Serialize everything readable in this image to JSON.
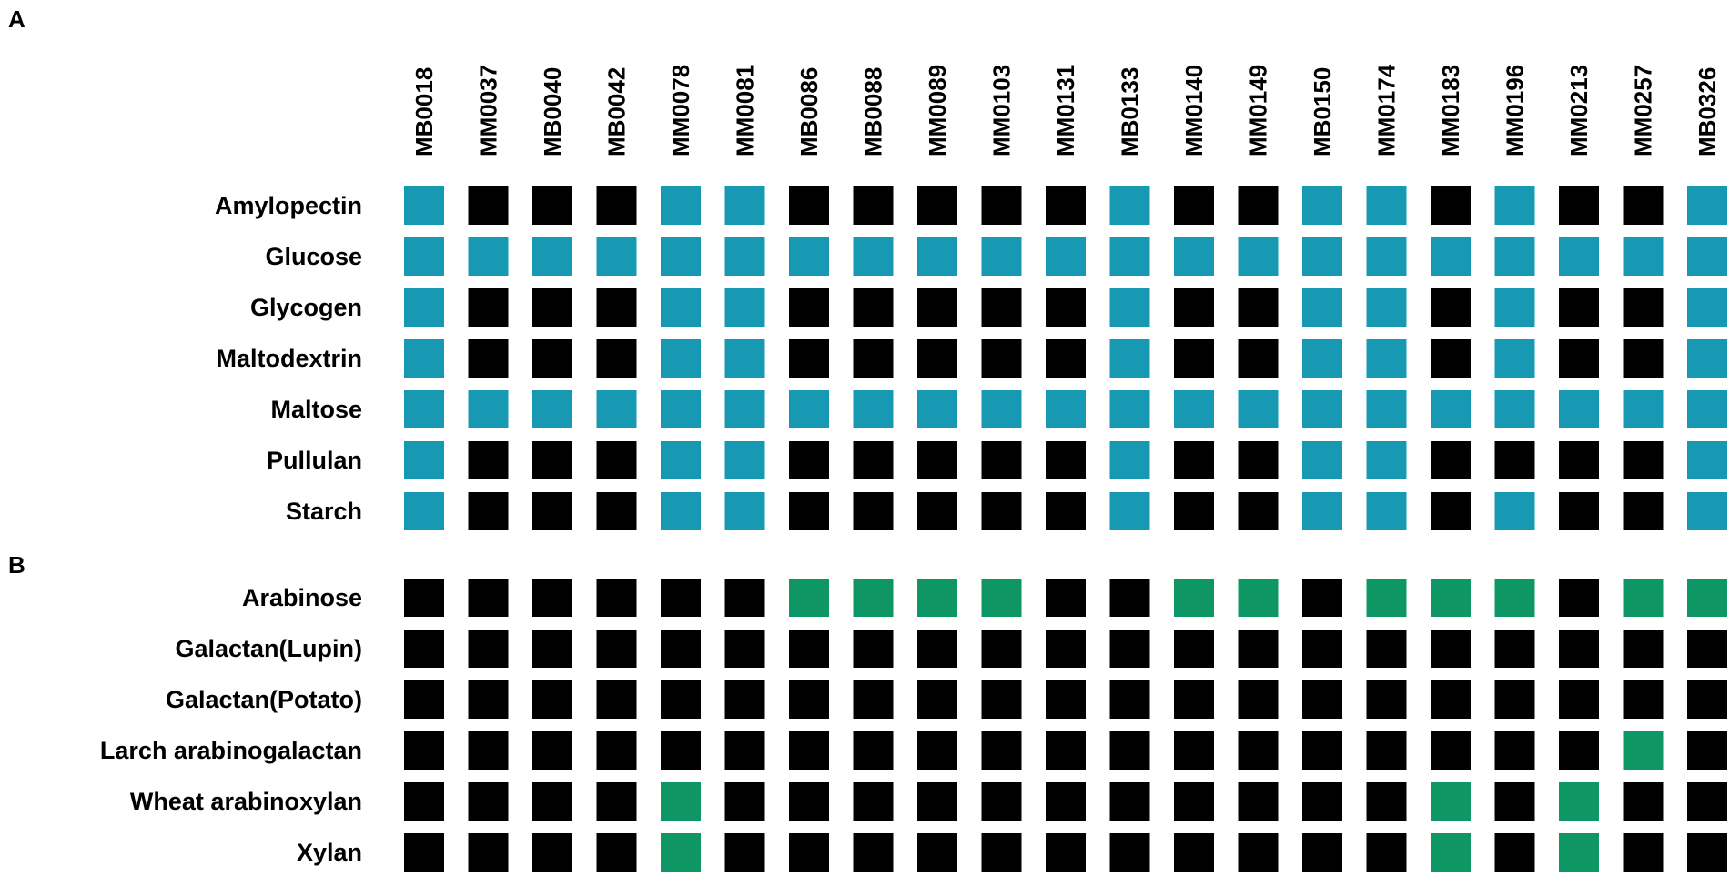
{
  "colors": {
    "positive_A": "#1798B3",
    "positive_B": "#0E9764",
    "negative": "#000000",
    "background": "#FFFFFF"
  },
  "chart_data": [
    {
      "type": "heatmap",
      "panel": "A",
      "columns": [
        "MB0018",
        "MM0037",
        "MB0040",
        "MB0042",
        "MM0078",
        "MM0081",
        "MB0086",
        "MB0088",
        "MM0089",
        "MM0103",
        "MM0131",
        "MB0133",
        "MM0140",
        "MM0149",
        "MB0150",
        "MM0174",
        "MM0183",
        "MM0196",
        "MM0213",
        "MM0257",
        "MB0326"
      ],
      "rows": [
        "Amylopectin",
        "Glucose",
        "Glycogen",
        "Maltodextrin",
        "Maltose",
        "Pullulan",
        "Starch"
      ],
      "matrix": [
        [
          1,
          0,
          0,
          0,
          1,
          1,
          0,
          0,
          0,
          0,
          0,
          1,
          0,
          0,
          1,
          1,
          0,
          1,
          0,
          0,
          1
        ],
        [
          1,
          1,
          1,
          1,
          1,
          1,
          1,
          1,
          1,
          1,
          1,
          1,
          1,
          1,
          1,
          1,
          1,
          1,
          1,
          1,
          1
        ],
        [
          1,
          0,
          0,
          0,
          1,
          1,
          0,
          0,
          0,
          0,
          0,
          1,
          0,
          0,
          1,
          1,
          0,
          1,
          0,
          0,
          1
        ],
        [
          1,
          0,
          0,
          0,
          1,
          1,
          0,
          0,
          0,
          0,
          0,
          1,
          0,
          0,
          1,
          1,
          0,
          1,
          0,
          0,
          1
        ],
        [
          1,
          1,
          1,
          1,
          1,
          1,
          1,
          1,
          1,
          1,
          1,
          1,
          1,
          1,
          1,
          1,
          1,
          1,
          1,
          1,
          1
        ],
        [
          1,
          0,
          0,
          0,
          1,
          1,
          0,
          0,
          0,
          0,
          0,
          1,
          0,
          0,
          1,
          1,
          0,
          0,
          0,
          0,
          1
        ],
        [
          1,
          0,
          0,
          0,
          1,
          1,
          0,
          0,
          0,
          0,
          0,
          1,
          0,
          0,
          1,
          1,
          0,
          1,
          0,
          0,
          1
        ]
      ],
      "positive_color": "#1798B3",
      "negative_color": "#000000"
    },
    {
      "type": "heatmap",
      "panel": "B",
      "columns": [
        "MB0018",
        "MM0037",
        "MB0040",
        "MB0042",
        "MM0078",
        "MM0081",
        "MB0086",
        "MB0088",
        "MM0089",
        "MM0103",
        "MM0131",
        "MB0133",
        "MM0140",
        "MM0149",
        "MB0150",
        "MM0174",
        "MM0183",
        "MM0196",
        "MM0213",
        "MM0257",
        "MB0326"
      ],
      "rows": [
        "Arabinose",
        "Galactan(Lupin)",
        "Galactan(Potato)",
        "Larch arabinogalactan",
        "Wheat arabinoxylan",
        "Xylan"
      ],
      "matrix": [
        [
          0,
          0,
          0,
          0,
          0,
          0,
          1,
          1,
          1,
          1,
          0,
          0,
          1,
          1,
          0,
          1,
          1,
          1,
          0,
          1,
          1
        ],
        [
          0,
          0,
          0,
          0,
          0,
          0,
          0,
          0,
          0,
          0,
          0,
          0,
          0,
          0,
          0,
          0,
          0,
          0,
          0,
          0,
          0
        ],
        [
          0,
          0,
          0,
          0,
          0,
          0,
          0,
          0,
          0,
          0,
          0,
          0,
          0,
          0,
          0,
          0,
          0,
          0,
          0,
          0,
          0
        ],
        [
          0,
          0,
          0,
          0,
          0,
          0,
          0,
          0,
          0,
          0,
          0,
          0,
          0,
          0,
          0,
          0,
          0,
          0,
          0,
          1,
          0
        ],
        [
          0,
          0,
          0,
          0,
          1,
          0,
          0,
          0,
          0,
          0,
          0,
          0,
          0,
          0,
          0,
          0,
          1,
          0,
          1,
          0,
          0
        ],
        [
          0,
          0,
          0,
          0,
          1,
          0,
          0,
          0,
          0,
          0,
          0,
          0,
          0,
          0,
          0,
          0,
          1,
          0,
          1,
          0,
          0
        ]
      ],
      "positive_color": "#0E9764",
      "negative_color": "#000000"
    }
  ]
}
